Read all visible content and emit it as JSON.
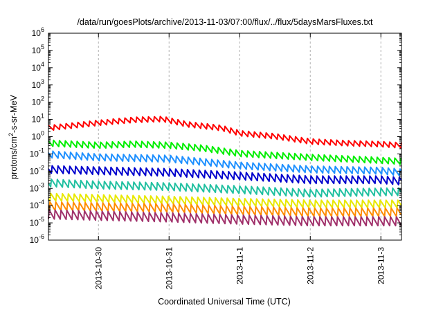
{
  "chart_data": {
    "type": "line",
    "title": "/data/run/goesPlots/archive/2013-11-03/07:00/flux/../flux/5daysMarsFluxes.txt",
    "xlabel": "Coordinated Universal Time (UTC)",
    "ylabel_parts": [
      "protons/cm",
      "2",
      "-s-sr-MeV"
    ],
    "yscale": "log",
    "ylim_exp": [
      -6,
      6
    ],
    "y_ticks": [
      {
        "base": "10",
        "exp": "-6"
      },
      {
        "base": "10",
        "exp": "-5"
      },
      {
        "base": "10",
        "exp": "-4"
      },
      {
        "base": "10",
        "exp": "-3"
      },
      {
        "base": "10",
        "exp": "-2"
      },
      {
        "base": "10",
        "exp": "-1"
      },
      {
        "base": "10",
        "exp": "0"
      },
      {
        "base": "10",
        "exp": "1"
      },
      {
        "base": "10",
        "exp": "2"
      },
      {
        "base": "10",
        "exp": "3"
      },
      {
        "base": "10",
        "exp": "4"
      },
      {
        "base": "10",
        "exp": "5"
      },
      {
        "base": "10",
        "exp": "6"
      }
    ],
    "xlim": [
      "2013-10-29 07:00",
      "2013-11-03 07:00"
    ],
    "x_ticks": [
      {
        "label": "2013-10-30",
        "date": "2013-10-30 00:00"
      },
      {
        "label": "2013-10-31",
        "date": "2013-10-31 00:00"
      },
      {
        "label": "2013-11-1",
        "date": "2013-11-01 00:00"
      },
      {
        "label": "2013-11-2",
        "date": "2013-11-02 00:00"
      },
      {
        "label": "2013-11-3",
        "date": "2013-11-03 00:00"
      }
    ],
    "grid": "vertical-dashed",
    "sawtooth_period_hours": 2,
    "series": [
      {
        "color": "#ff0000",
        "amp": 0.35,
        "trend": [
          [
            "2013-10-29 07:00",
            3.0
          ],
          [
            "2013-10-30 00:00",
            6.0
          ],
          [
            "2013-10-30 12:00",
            9.0
          ],
          [
            "2013-10-30 22:00",
            10.0
          ],
          [
            "2013-10-31 06:00",
            5.0
          ],
          [
            "2013-10-31 18:00",
            3.0
          ],
          [
            "2013-11-01 00:00",
            1.5
          ],
          [
            "2013-11-01 12:00",
            1.0
          ],
          [
            "2013-11-02 00:00",
            0.5
          ],
          [
            "2013-11-02 12:00",
            0.4
          ],
          [
            "2013-11-03 00:00",
            0.35
          ],
          [
            "2013-11-03 07:00",
            0.3
          ]
        ]
      },
      {
        "color": "#00ee00",
        "amp": 0.4,
        "trend": [
          [
            "2013-10-29 07:00",
            0.4
          ],
          [
            "2013-10-30 00:00",
            0.3
          ],
          [
            "2013-10-30 12:00",
            0.35
          ],
          [
            "2013-10-31 00:00",
            0.3
          ],
          [
            "2013-10-31 12:00",
            0.2
          ],
          [
            "2013-11-01 00:00",
            0.1
          ],
          [
            "2013-11-02 00:00",
            0.06
          ],
          [
            "2013-11-03 00:00",
            0.04
          ],
          [
            "2013-11-03 07:00",
            0.035
          ]
        ]
      },
      {
        "color": "#1e90ff",
        "amp": 0.45,
        "trend": [
          [
            "2013-10-29 07:00",
            0.09
          ],
          [
            "2013-10-30 00:00",
            0.06
          ],
          [
            "2013-10-31 00:00",
            0.05
          ],
          [
            "2013-11-01 00:00",
            0.02
          ],
          [
            "2013-11-02 00:00",
            0.012
          ],
          [
            "2013-11-03 00:00",
            0.01
          ],
          [
            "2013-11-03 07:00",
            0.008
          ]
        ]
      },
      {
        "color": "#0000cc",
        "amp": 0.5,
        "trend": [
          [
            "2013-10-29 07:00",
            0.012
          ],
          [
            "2013-10-30 00:00",
            0.01
          ],
          [
            "2013-10-31 00:00",
            0.008
          ],
          [
            "2013-11-01 00:00",
            0.005
          ],
          [
            "2013-11-02 00:00",
            0.003
          ],
          [
            "2013-11-03 00:00",
            0.003
          ],
          [
            "2013-11-03 07:00",
            0.0025
          ]
        ]
      },
      {
        "color": "#20c0a0",
        "amp": 0.5,
        "trend": [
          [
            "2013-10-29 07:00",
            0.002
          ],
          [
            "2013-10-30 00:00",
            0.0015
          ],
          [
            "2013-10-31 00:00",
            0.0012
          ],
          [
            "2013-11-01 00:00",
            0.0008
          ],
          [
            "2013-11-02 00:00",
            0.0005
          ],
          [
            "2013-11-03 00:00",
            0.0006
          ],
          [
            "2013-11-03 07:00",
            0.0006
          ]
        ]
      },
      {
        "color": "#e8e800",
        "amp": 0.5,
        "trend": [
          [
            "2013-10-29 07:00",
            0.0003
          ],
          [
            "2013-10-30 00:00",
            0.00025
          ],
          [
            "2013-10-31 00:00",
            0.0002
          ],
          [
            "2013-11-01 00:00",
            0.00015
          ],
          [
            "2013-11-02 00:00",
            0.00012
          ],
          [
            "2013-11-03 00:00",
            0.00012
          ],
          [
            "2013-11-03 07:00",
            0.00012
          ]
        ]
      },
      {
        "color": "#ff8c00",
        "amp": 0.55,
        "trend": [
          [
            "2013-10-29 07:00",
            9e-05
          ],
          [
            "2013-10-30 00:00",
            8e-05
          ],
          [
            "2013-10-31 00:00",
            7e-05
          ],
          [
            "2013-11-01 00:00",
            5e-05
          ],
          [
            "2013-11-02 00:00",
            4e-05
          ],
          [
            "2013-11-03 00:00",
            4e-05
          ],
          [
            "2013-11-03 07:00",
            4e-05
          ]
        ]
      },
      {
        "color": "#a0306a",
        "amp": 0.6,
        "trend": [
          [
            "2013-10-29 07:00",
            3e-05
          ],
          [
            "2013-10-30 00:00",
            2.5e-05
          ],
          [
            "2013-10-31 00:00",
            2e-05
          ],
          [
            "2013-11-01 00:00",
            1.5e-05
          ],
          [
            "2013-11-02 00:00",
            1.2e-05
          ],
          [
            "2013-11-03 00:00",
            1.2e-05
          ],
          [
            "2013-11-03 07:00",
            1.2e-05
          ]
        ]
      }
    ]
  }
}
